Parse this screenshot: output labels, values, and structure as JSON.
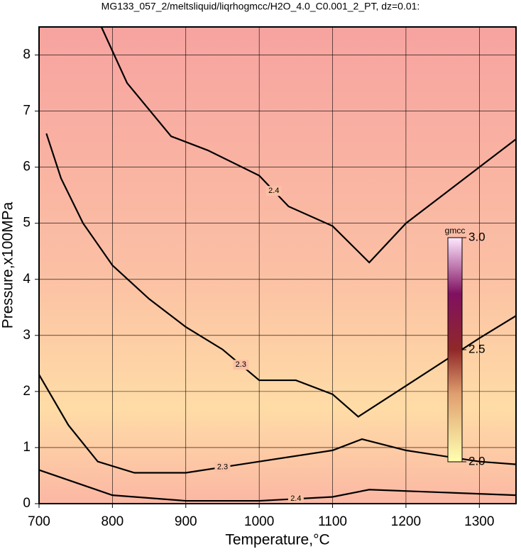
{
  "chart_data": {
    "type": "contour",
    "title": "MG133_057_2/meltsliquid/liqrhogmcc/H2O_4.0_C0.001_2_PT, dz=0.01:",
    "x_label": "Temperature,°C",
    "y_label": "Pressure,x100MPa",
    "xlim": [
      700,
      1350
    ],
    "ylim": [
      0,
      8.5
    ],
    "xticks": [
      700,
      800,
      900,
      1000,
      1100,
      1200,
      1300
    ],
    "yticks": [
      0,
      1,
      2,
      3,
      4,
      5,
      6,
      7,
      8
    ],
    "grid": true,
    "contours": [
      {
        "level": 2.4,
        "x": [
          785,
          820,
          880,
          930,
          1000,
          1040,
          1100,
          1150,
          1200,
          1300,
          1350
        ],
        "y": [
          8.5,
          7.5,
          6.55,
          6.3,
          5.85,
          5.3,
          4.95,
          4.3,
          5.0,
          6.0,
          6.5
        ]
      },
      {
        "level": 2.3,
        "x": [
          710,
          730,
          760,
          800,
          850,
          900,
          950,
          1000,
          1050,
          1100,
          1135,
          1200,
          1300,
          1350
        ],
        "y": [
          6.6,
          5.8,
          5.0,
          4.25,
          3.65,
          3.15,
          2.75,
          2.2,
          2.2,
          1.95,
          1.55,
          2.1,
          2.95,
          3.35
        ]
      },
      {
        "level": 2.3,
        "x": [
          700,
          740,
          780,
          830,
          900,
          1000,
          1100,
          1140,
          1200,
          1300,
          1350
        ],
        "y": [
          2.3,
          1.4,
          0.75,
          0.55,
          0.55,
          0.75,
          0.95,
          1.15,
          0.95,
          0.75,
          0.7
        ]
      },
      {
        "level": 2.4,
        "x": [
          700,
          800,
          900,
          1000,
          1100,
          1150,
          1250,
          1350
        ],
        "y": [
          0.6,
          0.15,
          0.05,
          0.05,
          0.12,
          0.25,
          0.2,
          0.15
        ]
      }
    ],
    "colorbar": {
      "label": "gmcc",
      "clim": [
        2.0,
        3.0
      ],
      "ticks": [
        {
          "value": 2.0,
          "label": "2.0"
        },
        2.5,
        {
          "value": 3.0,
          "label": "3.0"
        }
      ]
    }
  }
}
